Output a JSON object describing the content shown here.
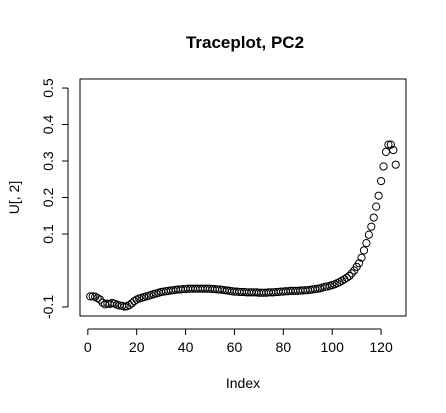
{
  "chart_data": {
    "type": "scatter",
    "title": "Traceplot, PC2",
    "xlabel": "Index",
    "ylabel": "U[, 2]",
    "xlim": [
      -3.2,
      130.2
    ],
    "ylim": [
      -0.1248,
      0.5248
    ],
    "xticks": [
      0,
      20,
      40,
      60,
      80,
      100,
      120
    ],
    "yticks": [
      -0.1,
      0.1,
      0.2,
      0.3,
      0.4,
      0.5
    ],
    "ytick_labels": [
      "-0.1",
      "0.1",
      "0.2",
      "0.3",
      "0.4",
      "0.5"
    ],
    "marker": "open-circle",
    "grid": false,
    "legend": "none",
    "x": [
      1,
      2,
      3,
      4,
      5,
      6,
      7,
      8,
      9,
      10,
      11,
      12,
      13,
      14,
      15,
      16,
      17,
      18,
      19,
      20,
      21,
      22,
      23,
      24,
      25,
      26,
      27,
      28,
      29,
      30,
      31,
      32,
      33,
      34,
      35,
      36,
      37,
      38,
      39,
      40,
      41,
      42,
      43,
      44,
      45,
      46,
      47,
      48,
      49,
      50,
      51,
      52,
      53,
      54,
      55,
      56,
      57,
      58,
      59,
      60,
      61,
      62,
      63,
      64,
      65,
      66,
      67,
      68,
      69,
      70,
      71,
      72,
      73,
      74,
      75,
      76,
      77,
      78,
      79,
      80,
      81,
      82,
      83,
      84,
      85,
      86,
      87,
      88,
      89,
      90,
      91,
      92,
      93,
      94,
      95,
      96,
      97,
      98,
      99,
      100,
      101,
      102,
      103,
      104,
      105,
      106,
      107,
      108,
      109,
      110,
      111,
      112,
      113,
      114,
      115,
      116,
      117,
      118,
      119,
      120,
      121,
      122,
      123,
      124,
      125,
      126
    ],
    "y": [
      -0.071,
      -0.071,
      -0.072,
      -0.076,
      -0.08,
      -0.088,
      -0.093,
      -0.091,
      -0.092,
      -0.089,
      -0.091,
      -0.094,
      -0.096,
      -0.097,
      -0.099,
      -0.098,
      -0.095,
      -0.09,
      -0.084,
      -0.08,
      -0.077,
      -0.075,
      -0.073,
      -0.071,
      -0.069,
      -0.067,
      -0.065,
      -0.063,
      -0.061,
      -0.059,
      -0.058,
      -0.057,
      -0.056,
      -0.055,
      -0.054,
      -0.053,
      -0.052,
      -0.052,
      -0.051,
      -0.051,
      -0.05,
      -0.05,
      -0.05,
      -0.05,
      -0.05,
      -0.05,
      -0.05,
      -0.05,
      -0.05,
      -0.05,
      -0.051,
      -0.051,
      -0.052,
      -0.052,
      -0.053,
      -0.054,
      -0.055,
      -0.056,
      -0.057,
      -0.058,
      -0.058,
      -0.059,
      -0.059,
      -0.059,
      -0.06,
      -0.06,
      -0.06,
      -0.06,
      -0.06,
      -0.061,
      -0.061,
      -0.061,
      -0.061,
      -0.06,
      -0.06,
      -0.06,
      -0.059,
      -0.059,
      -0.058,
      -0.058,
      -0.057,
      -0.057,
      -0.056,
      -0.056,
      -0.056,
      -0.056,
      -0.055,
      -0.055,
      -0.054,
      -0.054,
      -0.053,
      -0.052,
      -0.051,
      -0.05,
      -0.049,
      -0.047,
      -0.045,
      -0.044,
      -0.042,
      -0.04,
      -0.038,
      -0.035,
      -0.032,
      -0.028,
      -0.024,
      -0.02,
      -0.015,
      -0.008,
      0.0,
      0.01,
      0.02,
      0.035,
      0.055,
      0.075,
      0.098,
      0.12,
      0.145,
      0.175,
      0.205,
      0.245,
      0.285,
      0.325,
      0.345,
      0.345,
      0.33,
      0.29
    ]
  }
}
